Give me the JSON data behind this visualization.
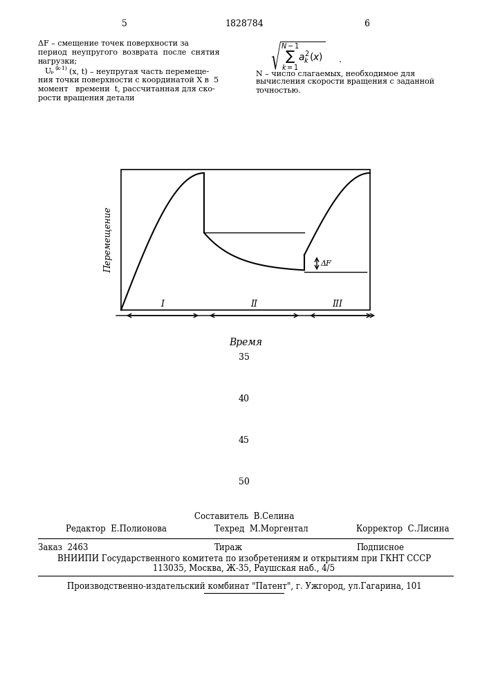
{
  "page_number_left": "5",
  "page_number_center": "1828784",
  "page_number_right": "6",
  "text_left_col": [
    "ΔF – смещение точек поверхности за",
    "период  неупругого  возврата  после  снятия",
    "нагрузки;"
  ],
  "text_left_col2": [
    "Uₚⁿ⁽ᵏ⁻¹⁾(x, t) – неупругая часть перемеще-",
    "ния точки поверхности с координатой X в  5",
    "момент   времени  t, рассчитанная для ско-",
    "рости вращения детали"
  ],
  "ylabel_graph": "Перемещение",
  "xlabel_graph": "Время",
  "delta_f_label": "ΔF",
  "region_labels": [
    "I",
    "II",
    "III"
  ],
  "numbers_col": [
    "35",
    "40",
    "45",
    "50"
  ],
  "editor_line": "Редактор  Е.Полионова",
  "composer_line": "Составитель  В.Селина",
  "techred_line": "Техред  М.Моргентал",
  "corrector_line": "Корректор  С.Лисина",
  "zakaz_line": "Заказ  2463",
  "tirazh_line": "Тираж",
  "podpisnoe_line": "Подписное",
  "vniip_line": "ВНИИПИ Государственного комитета по изобретениям и открытиям при ГКНТ СССР",
  "address_line": "113035, Москва, Ж-35, Раушская наб., 4/5",
  "patent_line": "Производственно-издательский комбинат \"Патент\", г. Ужгород, ул.Гагарина, 101",
  "right_col_text": [
    "N – число слагаемых, необходимое для",
    "вычисления скорости вращения с заданной",
    "точностью."
  ]
}
